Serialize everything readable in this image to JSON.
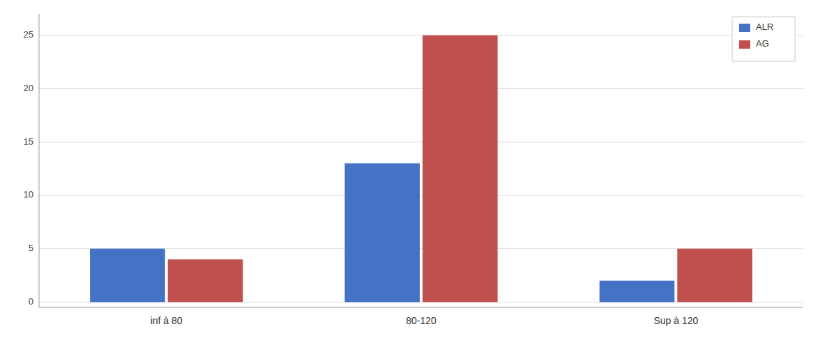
{
  "chart_data": {
    "type": "bar",
    "categories": [
      "inf à 80",
      "80-120",
      "Sup à 120"
    ],
    "series": [
      {
        "name": "ALR",
        "color": "#4472C4",
        "values": [
          5,
          13,
          2
        ]
      },
      {
        "name": "AG",
        "color": "#C0504D",
        "values": [
          4,
          25,
          5
        ]
      }
    ],
    "ylim": [
      -0.5,
      27
    ],
    "yticks": [
      0,
      5,
      10,
      15,
      20,
      25
    ],
    "grid": true,
    "legend": "upper right"
  }
}
